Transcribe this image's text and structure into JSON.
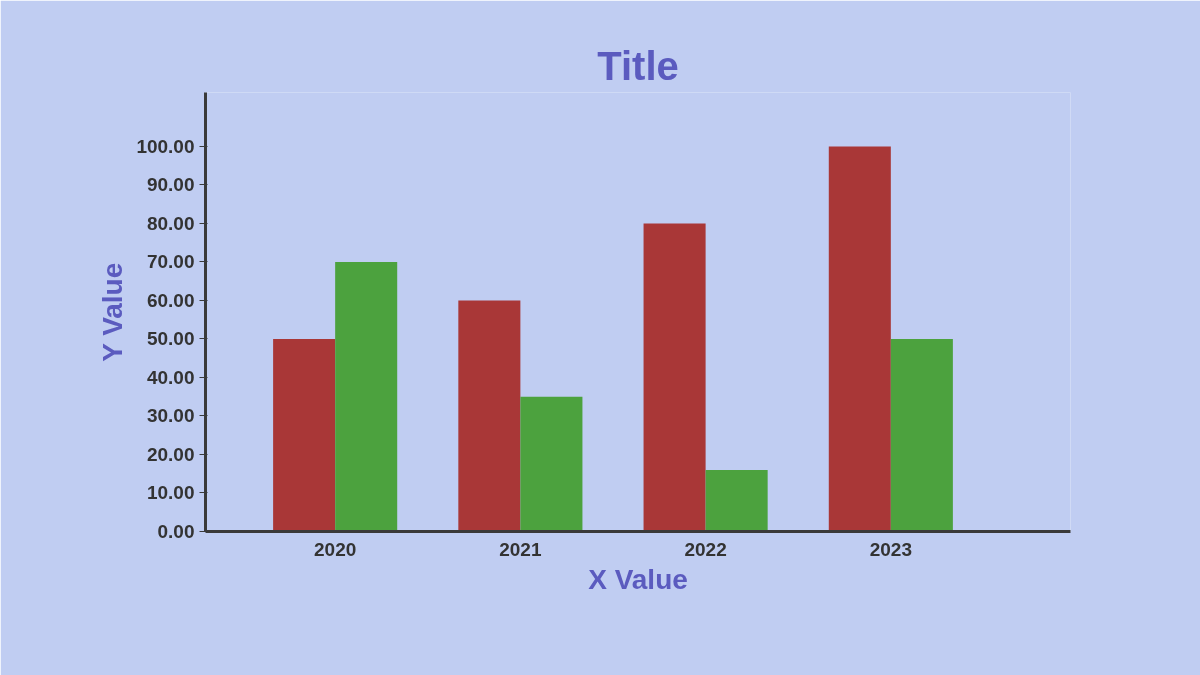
{
  "chart_data": {
    "type": "bar",
    "title": "Title",
    "xlabel": "X Value",
    "ylabel": "Y Value",
    "categories": [
      "2020",
      "2021",
      "2022",
      "2023"
    ],
    "series": [
      {
        "color": "#a93737",
        "values": [
          50,
          60,
          80,
          100
        ]
      },
      {
        "color": "#4ca23e",
        "values": [
          70,
          35,
          16,
          50
        ]
      }
    ],
    "ylim": [
      0,
      114
    ],
    "yticks": [
      {
        "value": 0,
        "label": "0.00"
      },
      {
        "value": 10,
        "label": "10.00"
      },
      {
        "value": 20,
        "label": "20.00"
      },
      {
        "value": 30,
        "label": "30.00"
      },
      {
        "value": 40,
        "label": "40.00"
      },
      {
        "value": 50,
        "label": "50.00"
      },
      {
        "value": 60,
        "label": "60.00"
      },
      {
        "value": 70,
        "label": "70.00"
      },
      {
        "value": 80,
        "label": "80.00"
      },
      {
        "value": 90,
        "label": "90.00"
      },
      {
        "value": 100,
        "label": "100.00"
      }
    ],
    "grid": false
  }
}
